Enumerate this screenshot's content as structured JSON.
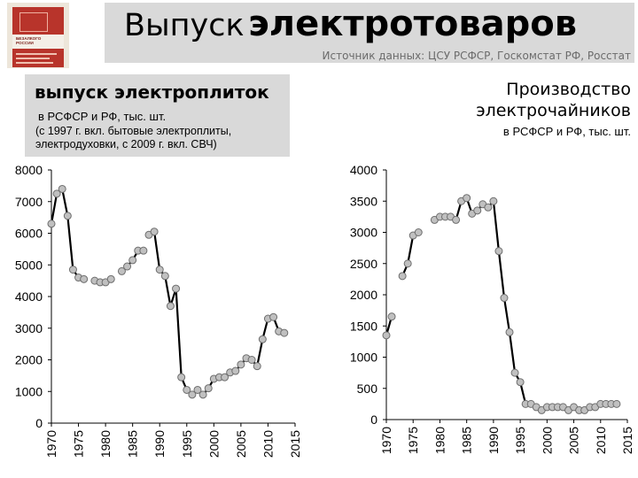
{
  "title": {
    "light": "Выпуск",
    "bold": "электротоваров"
  },
  "source": "Источник данных: ЦСУ РСФСР, Госкомстат РФ, Росстат",
  "book_cover": {
    "line1": "БЕЗАЛКОГО",
    "line2": "РОССИИ"
  },
  "left_panel": {
    "title": "выпуск электроплиток",
    "subtitle": "в РСФСР и РФ, тыс. шт.",
    "note": "(с 1997 г. вкл. бытовые электроплиты, электродуховки, с 2009 г. вкл. СВЧ)"
  },
  "right_panel": {
    "title_line1": "Производство",
    "title_line2": "электрочайников",
    "subtitle": "в РСФСР и РФ, тыс. шт."
  },
  "chart_data": [
    {
      "type": "line",
      "title": "выпуск электроплиток",
      "xlim": [
        1970,
        2015
      ],
      "ylim": [
        0,
        8000
      ],
      "xticks": [
        1970,
        1975,
        1980,
        1985,
        1990,
        1995,
        2000,
        2005,
        2010,
        2015
      ],
      "yticks": [
        0,
        1000,
        2000,
        3000,
        4000,
        5000,
        6000,
        7000,
        8000
      ],
      "series": [
        {
          "segments": [
            [
              [
                1970,
                6300
              ],
              [
                1971,
                7250
              ],
              [
                1972,
                7400
              ],
              [
                1973,
                6550
              ],
              [
                1974,
                4850
              ],
              [
                1975,
                4600
              ],
              [
                1976,
                4550
              ]
            ],
            [
              [
                1978,
                4500
              ],
              [
                1979,
                4450
              ],
              [
                1980,
                4450
              ],
              [
                1981,
                4550
              ]
            ],
            [
              [
                1983,
                4800
              ],
              [
                1984,
                4950
              ],
              [
                1985,
                5150
              ],
              [
                1986,
                5450
              ],
              [
                1987,
                5450
              ]
            ],
            [
              [
                1988,
                5950
              ],
              [
                1989,
                6050
              ],
              [
                1990,
                4850
              ],
              [
                1991,
                4650
              ],
              [
                1992,
                3700
              ],
              [
                1993,
                4250
              ],
              [
                1994,
                1450
              ],
              [
                1995,
                1050
              ],
              [
                1996,
                900
              ],
              [
                1997,
                1050
              ],
              [
                1998,
                900
              ],
              [
                1999,
                1100
              ],
              [
                2000,
                1400
              ],
              [
                2001,
                1450
              ],
              [
                2002,
                1450
              ],
              [
                2003,
                1600
              ],
              [
                2004,
                1650
              ],
              [
                2005,
                1850
              ],
              [
                2006,
                2050
              ],
              [
                2007,
                2000
              ],
              [
                2008,
                1800
              ],
              [
                2009,
                2650
              ],
              [
                2010,
                3300
              ],
              [
                2011,
                3350
              ],
              [
                2012,
                2900
              ],
              [
                2013,
                2850
              ]
            ]
          ]
        }
      ]
    },
    {
      "type": "line",
      "title": "Производство электрочайников",
      "xlim": [
        1970,
        2015
      ],
      "ylim": [
        0,
        4000
      ],
      "xticks": [
        1970,
        1975,
        1980,
        1985,
        1990,
        1995,
        2000,
        2005,
        2010,
        2015
      ],
      "yticks": [
        0,
        500,
        1000,
        1500,
        2000,
        2500,
        3000,
        3500,
        4000
      ],
      "series": [
        {
          "segments": [
            [
              [
                1970,
                1350
              ],
              [
                1971,
                1650
              ]
            ],
            [
              [
                1973,
                2300
              ],
              [
                1974,
                2500
              ],
              [
                1975,
                2950
              ],
              [
                1976,
                3000
              ]
            ],
            [
              [
                1979,
                3200
              ],
              [
                1980,
                3250
              ],
              [
                1981,
                3250
              ],
              [
                1982,
                3250
              ],
              [
                1983,
                3200
              ],
              [
                1984,
                3500
              ],
              [
                1985,
                3550
              ],
              [
                1986,
                3300
              ],
              [
                1987,
                3350
              ],
              [
                1988,
                3450
              ],
              [
                1989,
                3400
              ],
              [
                1990,
                3500
              ],
              [
                1991,
                2700
              ],
              [
                1992,
                1950
              ],
              [
                1993,
                1400
              ],
              [
                1994,
                750
              ],
              [
                1995,
                600
              ],
              [
                1996,
                250
              ],
              [
                1997,
                250
              ],
              [
                1998,
                200
              ],
              [
                1999,
                150
              ],
              [
                2000,
                200
              ],
              [
                2001,
                200
              ],
              [
                2002,
                200
              ],
              [
                2003,
                200
              ],
              [
                2004,
                150
              ],
              [
                2005,
                200
              ],
              [
                2006,
                150
              ],
              [
                2007,
                150
              ],
              [
                2008,
                200
              ],
              [
                2009,
                200
              ],
              [
                2010,
                250
              ],
              [
                2011,
                250
              ],
              [
                2012,
                250
              ],
              [
                2013,
                250
              ]
            ]
          ]
        }
      ]
    }
  ]
}
